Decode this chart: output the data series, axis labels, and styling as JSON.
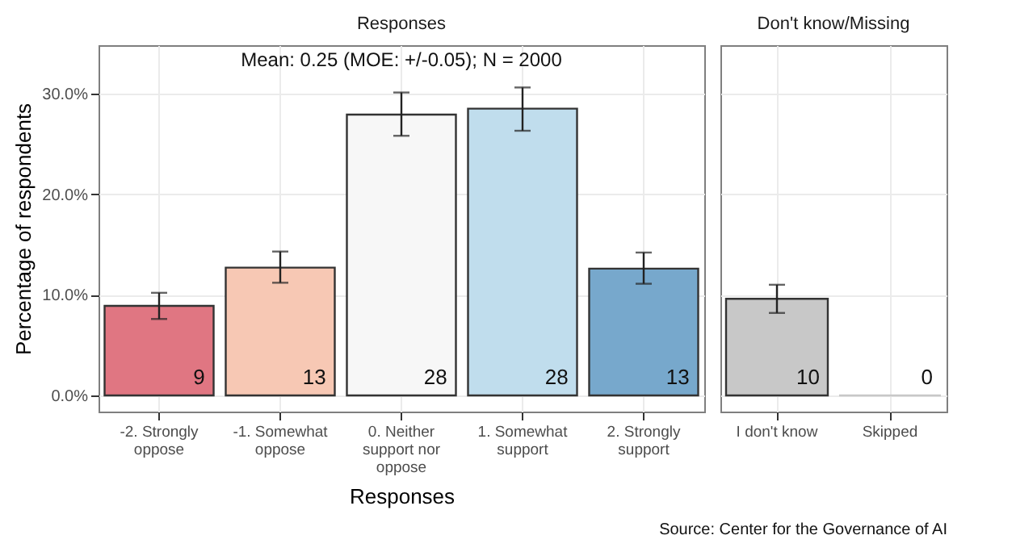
{
  "chart_data": [
    {
      "type": "bar",
      "title": "Responses",
      "xlabel": "Responses",
      "ylabel": "Percentage of respondents",
      "categories": [
        "-2. Strongly oppose",
        "-1. Somewhat oppose",
        "0. Neither support nor oppose",
        "1. Somewhat support",
        "2. Strongly support"
      ],
      "values": [
        8.9,
        12.7,
        27.9,
        28.5,
        12.6
      ],
      "colors": [
        "#e07682",
        "#f7c8b4",
        "#f7f7f7",
        "#c0dded",
        "#77a8cc"
      ],
      "errors": [
        [
          7.6,
          10.2
        ],
        [
          11.2,
          14.3
        ],
        [
          25.8,
          30.1
        ],
        [
          26.3,
          30.6
        ],
        [
          11.1,
          14.2
        ]
      ],
      "value_labels": [
        "9",
        "13",
        "28",
        "28",
        "13"
      ],
      "ylim": [
        -1.6,
        34.8
      ],
      "yticks": [
        {
          "value": 0,
          "label": "0.0%"
        },
        {
          "value": 10,
          "label": "10.0%"
        },
        {
          "value": 20,
          "label": "20.0%"
        },
        {
          "value": 30,
          "label": "30.0%"
        }
      ],
      "grid": true,
      "legend": false,
      "annotations": [
        "Mean: 0.25 (MOE: +/-0.05); N = 2000",
        "Source: Center for the Governance of AI"
      ]
    },
    {
      "type": "bar",
      "title": "Don't know/Missing",
      "categories": [
        "I don't know",
        "Skipped"
      ],
      "values": [
        9.6,
        0
      ],
      "colors": [
        "#c8c8c8",
        "#c8c8c8"
      ],
      "errors": [
        [
          8.2,
          11.0
        ],
        null
      ],
      "value_labels": [
        "10",
        "0"
      ],
      "ylim": [
        -1.6,
        34.8
      ],
      "yticks": [
        0,
        10,
        20,
        30
      ],
      "tick_labels": "x",
      "grid": true,
      "legend": false
    }
  ]
}
